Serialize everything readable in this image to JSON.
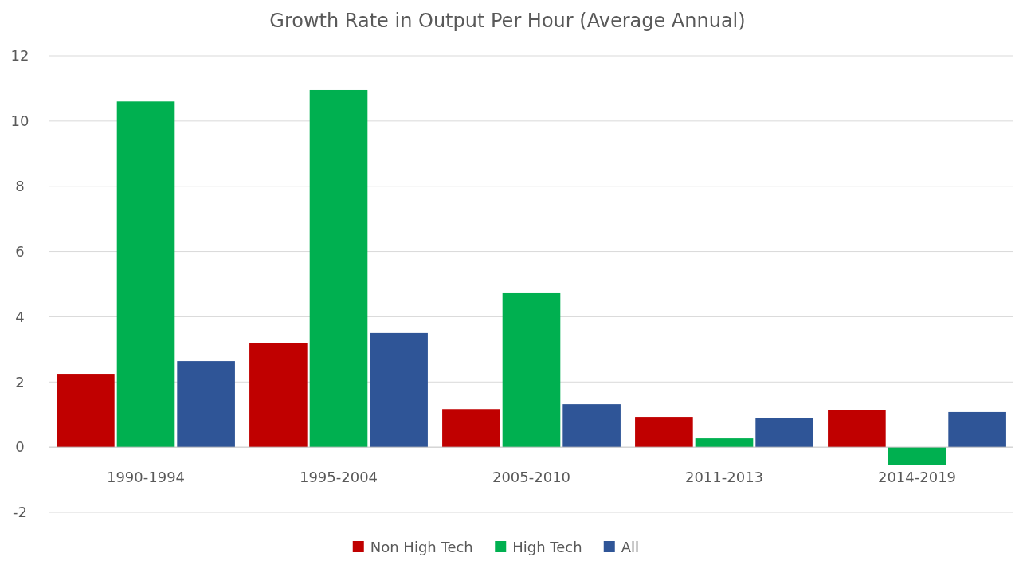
{
  "chart_data": {
    "type": "bar",
    "title": "Growth Rate in Output Per Hour (Average Annual)",
    "categories": [
      "1990-1994",
      "1995-2004",
      "2005-2010",
      "2011-2013",
      "2014-2019"
    ],
    "series": [
      {
        "name": "Non High Tech",
        "color": "#c00000",
        "values": [
          2.25,
          3.18,
          1.17,
          0.93,
          1.15
        ]
      },
      {
        "name": "High Tech",
        "color": "#00b050",
        "values": [
          10.6,
          10.95,
          4.72,
          0.27,
          -0.54
        ]
      },
      {
        "name": "All",
        "color": "#2f5597",
        "values": [
          2.64,
          3.5,
          1.32,
          0.9,
          1.08
        ]
      }
    ],
    "ylim": [
      -2,
      12
    ],
    "yticks": [
      -2,
      0,
      2,
      4,
      6,
      8,
      10,
      12
    ],
    "grid": "y",
    "legend": "bottom"
  }
}
